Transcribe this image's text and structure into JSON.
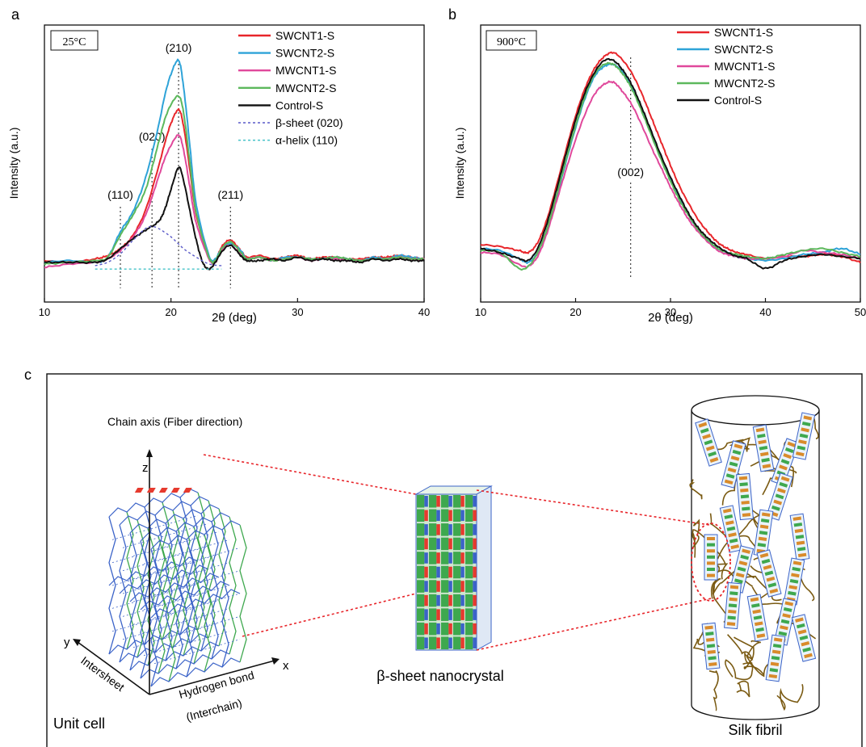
{
  "panel_letters": {
    "a": "a",
    "b": "b",
    "c": "c"
  },
  "chart_data": [
    {
      "type": "line",
      "panel": "a",
      "condition_label": "25°C",
      "xlabel": "2θ (deg)",
      "ylabel": "Intensity (a.u.)",
      "xlim": [
        10,
        40
      ],
      "xticks": [
        10,
        20,
        30,
        40
      ],
      "legend_position": "top-right",
      "peak_labels": [
        {
          "text": "(110)",
          "x": 16.0
        },
        {
          "text": "(020)",
          "x": 18.5
        },
        {
          "text": "(210)",
          "x": 20.6
        },
        {
          "text": "(211)",
          "x": 24.7
        }
      ],
      "series": [
        {
          "name": "SWCNT1-S",
          "color": "#e8262b",
          "x": [
            10,
            12,
            14,
            15,
            16,
            17,
            18,
            19,
            19.5,
            20,
            20.6,
            21,
            21.5,
            22,
            23,
            23.5,
            24,
            24.7,
            25.5,
            26,
            27,
            28,
            29,
            30,
            31,
            32,
            33,
            34,
            35,
            36,
            37,
            38,
            39,
            40
          ],
          "y": [
            0.03,
            0.02,
            0.04,
            0.06,
            0.1,
            0.18,
            0.33,
            0.58,
            0.72,
            0.84,
            0.92,
            0.82,
            0.56,
            0.3,
            0.05,
            0.03,
            0.11,
            0.15,
            0.09,
            0.05,
            0.06,
            0.04,
            0.05,
            0.06,
            0.04,
            0.05,
            0.05,
            0.04,
            0.04,
            0.05,
            0.05,
            0.06,
            0.05,
            0.04
          ]
        },
        {
          "name": "SWCNT2-S",
          "color": "#2ea3d8",
          "x": [
            10,
            12,
            14,
            15,
            16,
            17,
            18,
            19,
            19.5,
            20,
            20.6,
            21,
            21.5,
            22,
            23,
            23.5,
            24,
            24.7,
            25.5,
            26,
            27,
            28,
            29,
            30,
            31,
            32,
            33,
            34,
            35,
            36,
            37,
            38,
            39,
            40
          ],
          "y": [
            0.02,
            0.03,
            0.02,
            0.05,
            0.2,
            0.32,
            0.52,
            0.82,
            1.0,
            1.13,
            1.21,
            1.05,
            0.7,
            0.36,
            0.06,
            0.04,
            0.1,
            0.13,
            0.09,
            0.04,
            0.05,
            0.03,
            0.05,
            0.05,
            0.04,
            0.04,
            0.05,
            0.04,
            0.03,
            0.05,
            0.04,
            0.06,
            0.05,
            0.04
          ]
        },
        {
          "name": "MWCNT1-S",
          "color": "#e0489b",
          "x": [
            10,
            12,
            14,
            15,
            16,
            17,
            18,
            19,
            19.5,
            20,
            20.6,
            21,
            21.5,
            22,
            23,
            23.5,
            24,
            24.7,
            25.5,
            26,
            27,
            28,
            29,
            30,
            31,
            32,
            33,
            34,
            35,
            36,
            37,
            38,
            39,
            40
          ],
          "y": [
            -0.01,
            0.01,
            0.02,
            0.04,
            0.09,
            0.17,
            0.3,
            0.52,
            0.63,
            0.71,
            0.77,
            0.68,
            0.46,
            0.25,
            0.04,
            0.02,
            0.09,
            0.12,
            0.07,
            0.04,
            0.05,
            0.03,
            0.04,
            0.05,
            0.03,
            0.04,
            0.04,
            0.03,
            0.03,
            0.04,
            0.04,
            0.05,
            0.04,
            0.04
          ]
        },
        {
          "name": "MWCNT2-S",
          "color": "#5cb85c",
          "x": [
            10,
            12,
            14,
            15,
            16,
            17,
            18,
            19,
            19.5,
            20,
            20.6,
            21,
            21.5,
            22,
            23,
            23.5,
            24,
            24.7,
            25.5,
            26,
            27,
            28,
            29,
            30,
            31,
            32,
            33,
            34,
            35,
            36,
            37,
            38,
            39,
            40
          ],
          "y": [
            0.01,
            0.02,
            0.03,
            0.05,
            0.18,
            0.3,
            0.45,
            0.72,
            0.86,
            0.95,
            1.0,
            0.9,
            0.6,
            0.31,
            0.05,
            0.03,
            0.1,
            0.14,
            0.08,
            0.04,
            0.05,
            0.03,
            0.04,
            0.05,
            0.04,
            0.04,
            0.05,
            0.04,
            0.03,
            0.04,
            0.04,
            0.05,
            0.04,
            0.04
          ]
        },
        {
          "name": "Control-S",
          "color": "#111111",
          "x": [
            10,
            12,
            14,
            15,
            16,
            17,
            18,
            19,
            19.5,
            20,
            20.6,
            21,
            21.5,
            22,
            22.5,
            23,
            23.5,
            24,
            24.7,
            25.5,
            26,
            27,
            28,
            29,
            30,
            31,
            32,
            33,
            34,
            35,
            36,
            37,
            38,
            39,
            40
          ],
          "y": [
            0.02,
            0.02,
            0.02,
            0.04,
            0.1,
            0.16,
            0.21,
            0.26,
            0.33,
            0.45,
            0.58,
            0.5,
            0.32,
            0.15,
            0.02,
            -0.02,
            0.02,
            0.08,
            0.12,
            0.06,
            0.03,
            0.03,
            0.04,
            0.03,
            0.05,
            0.03,
            0.04,
            0.03,
            0.03,
            0.02,
            0.04,
            0.03,
            0.04,
            0.03,
            0.03
          ]
        },
        {
          "name": "β-sheet (020)",
          "color": "#5a5ac8",
          "dashed": true,
          "x": [
            14,
            15,
            16,
            17,
            18,
            18.5,
            19,
            20,
            21,
            22,
            23,
            24
          ],
          "y": [
            0.0,
            0.02,
            0.07,
            0.15,
            0.22,
            0.23,
            0.22,
            0.17,
            0.1,
            0.05,
            0.01,
            0.0
          ]
        },
        {
          "name": "α-helix  (110)",
          "color": "#45c2c8",
          "dashed": true,
          "x": [
            14,
            16,
            18,
            20,
            22,
            24
          ],
          "y": [
            -0.02,
            -0.02,
            -0.02,
            -0.02,
            -0.02,
            -0.02
          ]
        }
      ]
    },
    {
      "type": "line",
      "panel": "b",
      "condition_label": "900°C",
      "xlabel": "2θ (deg)",
      "ylabel": "Intensity (a.u.)",
      "xlim": [
        10,
        50
      ],
      "xticks": [
        10,
        20,
        30,
        40,
        50
      ],
      "legend_position": "top-right",
      "peak_labels": [
        {
          "text": "(002)",
          "x": 25.8
        }
      ],
      "series": [
        {
          "name": "SWCNT1-S",
          "color": "#e8262b",
          "x": [
            10,
            12,
            14,
            15,
            16,
            17,
            18,
            19,
            20,
            21,
            22,
            23,
            24,
            25,
            26,
            27,
            28,
            29,
            30,
            31,
            32,
            33,
            34,
            35,
            36,
            37,
            38,
            40,
            42,
            44,
            46,
            48,
            50
          ],
          "y": [
            0.07,
            0.06,
            0.04,
            0.03,
            0.08,
            0.2,
            0.37,
            0.55,
            0.72,
            0.86,
            0.96,
            1.02,
            1.04,
            1.0,
            0.93,
            0.83,
            0.71,
            0.59,
            0.47,
            0.36,
            0.27,
            0.19,
            0.13,
            0.08,
            0.05,
            0.03,
            0.02,
            0.0,
            0.01,
            0.01,
            0.02,
            0.01,
            -0.02
          ]
        },
        {
          "name": "SWCNT2-S",
          "color": "#2ea3d8",
          "x": [
            10,
            12,
            14,
            15,
            16,
            17,
            18,
            19,
            20,
            21,
            22,
            23,
            24,
            25,
            26,
            27,
            28,
            29,
            30,
            31,
            32,
            33,
            34,
            35,
            36,
            37,
            38,
            40,
            42,
            44,
            46,
            48,
            50
          ],
          "y": [
            0.05,
            0.04,
            0.0,
            -0.02,
            0.03,
            0.15,
            0.31,
            0.49,
            0.66,
            0.81,
            0.92,
            0.97,
            0.98,
            0.94,
            0.86,
            0.75,
            0.63,
            0.51,
            0.4,
            0.3,
            0.21,
            0.14,
            0.09,
            0.05,
            0.03,
            0.01,
            0.0,
            -0.01,
            0.0,
            0.02,
            0.03,
            0.05,
            0.02
          ]
        },
        {
          "name": "MWCNT1-S",
          "color": "#e0489b",
          "x": [
            10,
            12,
            14,
            15,
            16,
            17,
            18,
            19,
            20,
            21,
            22,
            23,
            24,
            25,
            26,
            27,
            28,
            29,
            30,
            31,
            32,
            33,
            34,
            35,
            36,
            37,
            38,
            40,
            42,
            44,
            46,
            48,
            50
          ],
          "y": [
            0.03,
            0.02,
            -0.03,
            -0.04,
            0.01,
            0.13,
            0.29,
            0.45,
            0.6,
            0.73,
            0.83,
            0.88,
            0.89,
            0.84,
            0.77,
            0.67,
            0.56,
            0.46,
            0.36,
            0.27,
            0.19,
            0.13,
            0.08,
            0.04,
            0.02,
            0.01,
            0.0,
            0.0,
            0.01,
            0.04,
            0.03,
            0.02,
            0.0
          ]
        },
        {
          "name": "MWCNT2-S",
          "color": "#5cb85c",
          "x": [
            10,
            12,
            14,
            15,
            16,
            17,
            18,
            19,
            20,
            21,
            22,
            23,
            24,
            25,
            26,
            27,
            28,
            29,
            30,
            31,
            32,
            33,
            34,
            35,
            36,
            37,
            38,
            40,
            42,
            44,
            46,
            48,
            50
          ],
          "y": [
            0.04,
            0.03,
            -0.05,
            -0.04,
            0.03,
            0.15,
            0.32,
            0.5,
            0.67,
            0.82,
            0.93,
            0.98,
            0.98,
            0.93,
            0.85,
            0.74,
            0.62,
            0.5,
            0.39,
            0.29,
            0.21,
            0.14,
            0.09,
            0.05,
            0.03,
            0.02,
            0.01,
            0.0,
            0.02,
            0.04,
            0.05,
            0.03,
            0.01
          ]
        },
        {
          "name": "Control-S",
          "color": "#111111",
          "x": [
            10,
            12,
            14,
            15,
            16,
            17,
            18,
            19,
            20,
            21,
            22,
            23,
            24,
            25,
            26,
            27,
            28,
            29,
            30,
            31,
            32,
            33,
            34,
            35,
            36,
            37,
            38,
            40,
            42,
            44,
            46,
            48,
            50
          ],
          "y": [
            0.05,
            0.03,
            0.0,
            -0.01,
            0.05,
            0.18,
            0.35,
            0.53,
            0.7,
            0.84,
            0.94,
            1.0,
            1.0,
            0.95,
            0.87,
            0.76,
            0.64,
            0.52,
            0.41,
            0.31,
            0.22,
            0.15,
            0.1,
            0.06,
            0.03,
            0.01,
            0.0,
            -0.05,
            -0.01,
            0.01,
            0.02,
            0.01,
            0.0
          ]
        }
      ]
    }
  ],
  "diagram": {
    "unit_cell": {
      "title": "Unit cell",
      "chain_axis_label": "Chain axis (Fiber direction)",
      "z_label": "z",
      "x_label": "x",
      "y_label": "y",
      "intersheet_label": "Intersheet",
      "hbond_label": "Hydrogen bond",
      "interchain_label": "(Interchain)"
    },
    "nanocrystal": {
      "title": "β-sheet nanocrystal"
    },
    "fibril": {
      "title": "Silk fibril"
    },
    "colors": {
      "sheet_blue": "#3b63c8",
      "sheet_green": "#3ea84e",
      "zoom_red": "#e8262b",
      "chain_brown": "#7a5a12"
    }
  }
}
